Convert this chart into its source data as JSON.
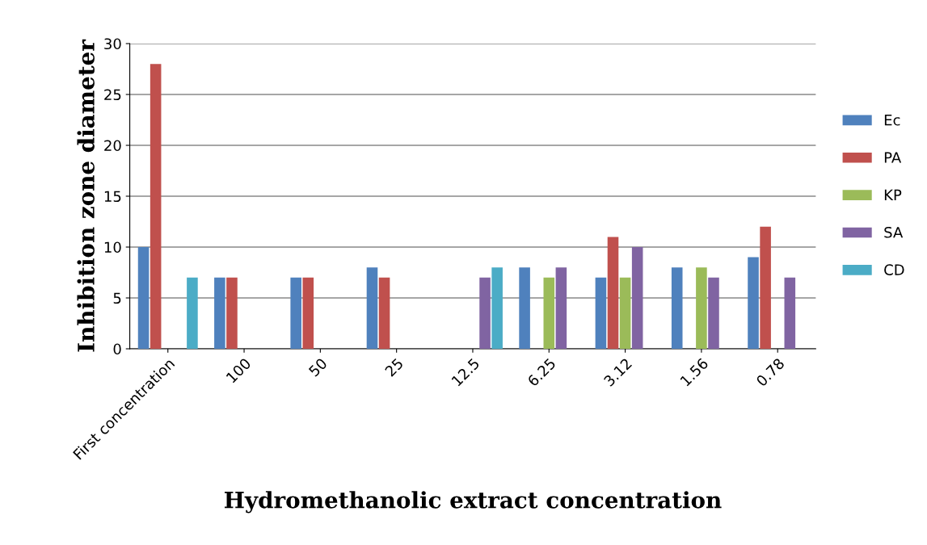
{
  "chart_data": {
    "type": "bar",
    "xlabel": "Hydromethanolic extract concentration",
    "ylabel": "Inhibition zone diameter",
    "categories": [
      "First concentration",
      "100",
      "50",
      "25",
      "12.5",
      "6.25",
      "3.12",
      "1.56",
      "0.78"
    ],
    "series": [
      {
        "name": "Ec",
        "color": "#4f81bd",
        "values": [
          10,
          7,
          7,
          8,
          0,
          8,
          7,
          8,
          9
        ]
      },
      {
        "name": "PA",
        "color": "#c0504d",
        "values": [
          28,
          7,
          7,
          7,
          0,
          0,
          11,
          0,
          12
        ]
      },
      {
        "name": "KP",
        "color": "#9bbb59",
        "values": [
          0,
          0,
          0,
          0,
          0,
          7,
          7,
          8,
          0
        ]
      },
      {
        "name": "SA",
        "color": "#8064a2",
        "values": [
          0,
          0,
          0,
          0,
          7,
          8,
          10,
          7,
          7
        ]
      },
      {
        "name": "CD",
        "color": "#4bacc6",
        "values": [
          7,
          0,
          0,
          0,
          8,
          0,
          0,
          0,
          0
        ]
      }
    ],
    "ylim": [
      0,
      30
    ],
    "yticks": [
      0,
      5,
      10,
      15,
      20,
      25,
      30
    ],
    "grid": "y",
    "legend": "right"
  }
}
